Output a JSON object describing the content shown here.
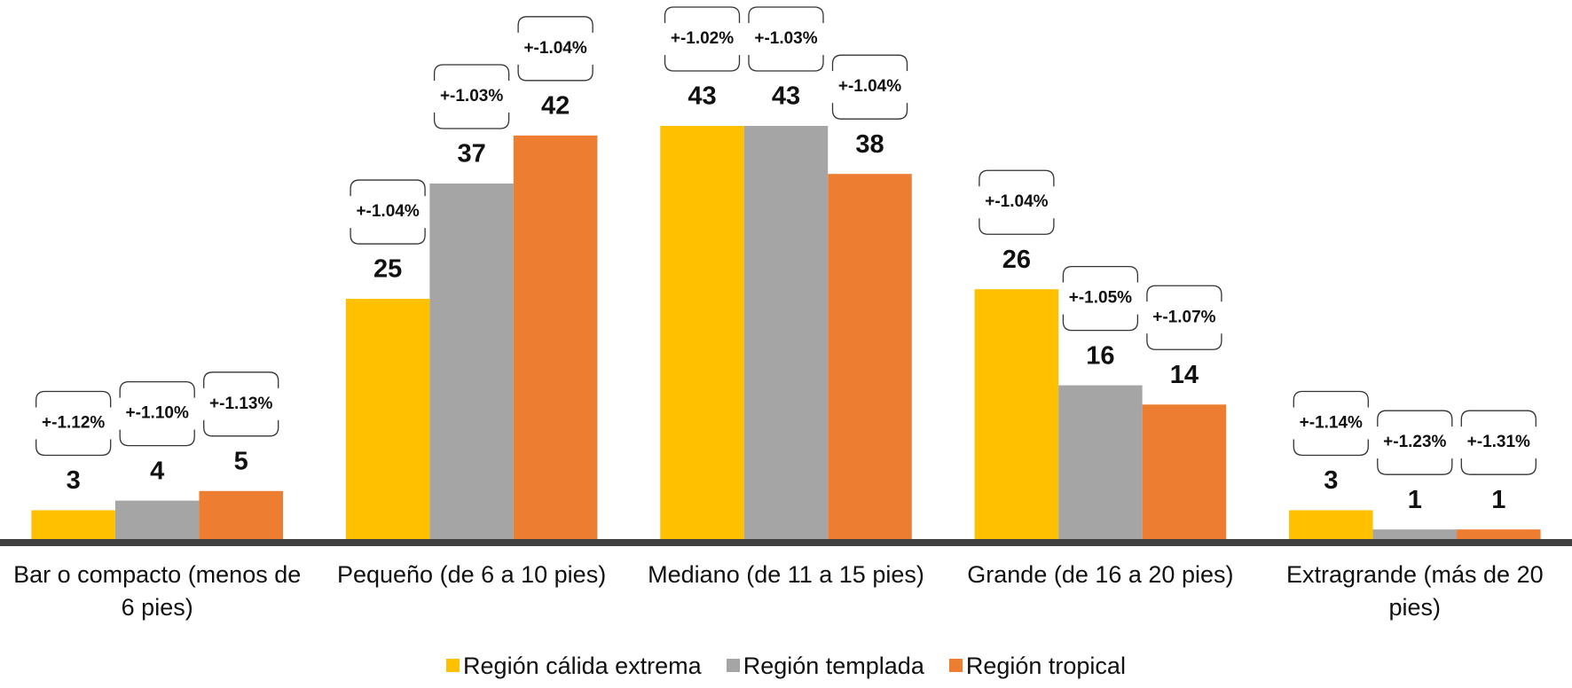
{
  "chart_data": {
    "type": "bar",
    "categories": [
      "Bar o compacto (menos de 6 pies)",
      "Pequeño (de 6 a 10 pies)",
      "Mediano (de 11 a 15 pies)",
      "Grande (de 16 a 20 pies)",
      "Extragrande (más de 20 pies)"
    ],
    "series": [
      {
        "name": "Región cálida extrema",
        "color": "#FFC000",
        "values": [
          3,
          25,
          43,
          26,
          3
        ],
        "error_labels": [
          "+-1.12%",
          "+-1.04%",
          "+-1.02%",
          "+-1.04%",
          "+-1.14%"
        ]
      },
      {
        "name": "Región templada",
        "color": "#A5A5A5",
        "values": [
          4,
          37,
          43,
          16,
          1
        ],
        "error_labels": [
          "+-1.10%",
          "+-1.03%",
          "+-1.03%",
          "+-1.05%",
          "+-1.23%"
        ]
      },
      {
        "name": "Región tropical",
        "color": "#ED7D31",
        "values": [
          5,
          42,
          38,
          14,
          1
        ],
        "error_labels": [
          "+-1.13%",
          "+-1.04%",
          "+-1.04%",
          "+-1.07%",
          "+-1.31%"
        ]
      }
    ],
    "legend": "bottom"
  }
}
